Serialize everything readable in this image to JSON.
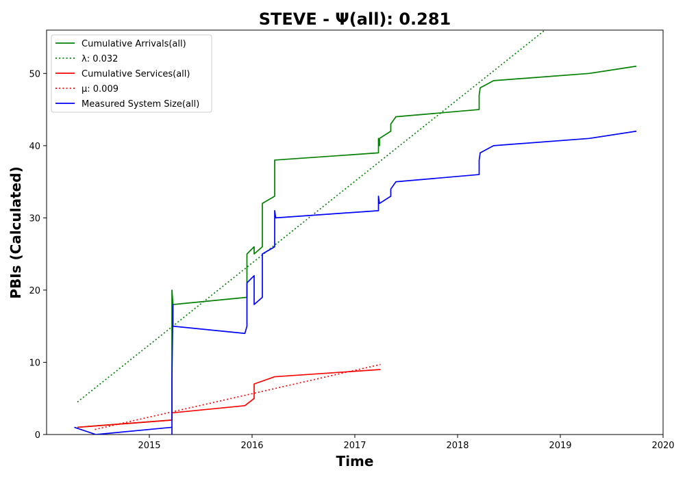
{
  "chart_data": {
    "type": "line",
    "title": "STEVE -  Ψ(all): 0.281",
    "xlabel": "Time",
    "ylabel": "PBIs (Calculated)",
    "xlim": [
      2014.0,
      2020.0
    ],
    "ylim": [
      0,
      56
    ],
    "x_ticks": [
      2015,
      2016,
      2017,
      2018,
      2019,
      2020
    ],
    "y_ticks": [
      0,
      10,
      20,
      30,
      40,
      50
    ],
    "grid": false,
    "legend_position": "upper-left",
    "series": [
      {
        "name": "Cumulative Arrivals(all)",
        "color": "#008000",
        "style": "solid",
        "points": [
          [
            2014.3,
            1
          ],
          [
            2015.22,
            2
          ],
          [
            2015.22,
            20
          ],
          [
            2015.23,
            18
          ],
          [
            2015.95,
            19
          ],
          [
            2015.95,
            25
          ],
          [
            2016.02,
            26
          ],
          [
            2016.02,
            25
          ],
          [
            2016.1,
            26
          ],
          [
            2016.1,
            32
          ],
          [
            2016.22,
            33
          ],
          [
            2016.22,
            38
          ],
          [
            2017.23,
            39
          ],
          [
            2017.23,
            41
          ],
          [
            2017.24,
            40
          ],
          [
            2017.24,
            41
          ],
          [
            2017.35,
            42
          ],
          [
            2017.35,
            43
          ],
          [
            2017.4,
            44
          ],
          [
            2018.21,
            45
          ],
          [
            2018.21,
            47
          ],
          [
            2018.22,
            48
          ],
          [
            2018.35,
            49
          ],
          [
            2019.28,
            50
          ],
          [
            2019.74,
            51
          ]
        ]
      },
      {
        "name": "λ: 0.032",
        "color": "#008000",
        "style": "dotted",
        "points": [
          [
            2014.3,
            4.5
          ],
          [
            2018.85,
            56
          ]
        ]
      },
      {
        "name": "Cumulative Services(all)",
        "color": "#ff0000",
        "style": "solid",
        "points": [
          [
            2014.3,
            1
          ],
          [
            2015.22,
            2
          ],
          [
            2015.22,
            3
          ],
          [
            2015.93,
            4
          ],
          [
            2016.02,
            5
          ],
          [
            2016.02,
            7
          ],
          [
            2016.22,
            8
          ],
          [
            2017.25,
            9
          ]
        ]
      },
      {
        "name": "μ: 0.009",
        "color": "#ff0000",
        "style": "dotted",
        "points": [
          [
            2014.47,
            0.7
          ],
          [
            2017.25,
            9.7
          ]
        ]
      },
      {
        "name": "Measured System Size(all)",
        "color": "#0000ff",
        "style": "solid",
        "points": [
          [
            2014.27,
            1
          ],
          [
            2014.48,
            0
          ],
          [
            2015.22,
            1
          ],
          [
            2015.22,
            0
          ],
          [
            2015.22,
            8
          ],
          [
            2015.23,
            18
          ],
          [
            2015.23,
            15
          ],
          [
            2015.93,
            14
          ],
          [
            2015.95,
            15
          ],
          [
            2015.95,
            21
          ],
          [
            2016.02,
            22
          ],
          [
            2016.02,
            18
          ],
          [
            2016.1,
            19
          ],
          [
            2016.1,
            25
          ],
          [
            2016.22,
            26
          ],
          [
            2016.22,
            31
          ],
          [
            2016.23,
            30
          ],
          [
            2017.23,
            31
          ],
          [
            2017.23,
            33
          ],
          [
            2017.24,
            32
          ],
          [
            2017.35,
            33
          ],
          [
            2017.35,
            34
          ],
          [
            2017.4,
            35
          ],
          [
            2018.21,
            36
          ],
          [
            2018.21,
            38
          ],
          [
            2018.22,
            39
          ],
          [
            2018.35,
            40
          ],
          [
            2019.28,
            41
          ],
          [
            2019.74,
            42
          ]
        ]
      }
    ]
  }
}
